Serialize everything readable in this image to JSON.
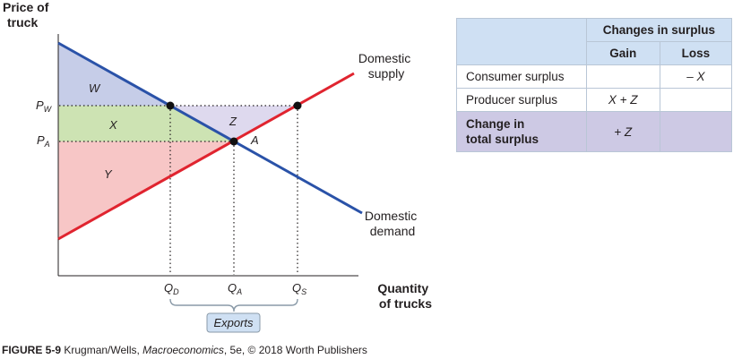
{
  "axes": {
    "y_label": [
      "Price of",
      "truck"
    ],
    "x_label": [
      "Quantity",
      "of trucks"
    ]
  },
  "curves": {
    "supply_label": [
      "Domestic",
      "supply"
    ],
    "demand_label": [
      "Domestic",
      "demand"
    ]
  },
  "price_ticks": {
    "pw_main": "P",
    "pw_sub": "W",
    "pa_main": "P",
    "pa_sub": "A"
  },
  "quantity_ticks": {
    "qd_main": "Q",
    "qd_sub": "D",
    "qa_main": "Q",
    "qa_sub": "A",
    "qs_main": "Q",
    "qs_sub": "S"
  },
  "areas": {
    "w": "W",
    "x": "X",
    "y": "Y",
    "z": "Z"
  },
  "point_a": "A",
  "exports_label": "Exports",
  "colors": {
    "supply": "#e0242f",
    "demand": "#2a52a8",
    "area_w": "#c6cde8",
    "area_x": "#cde3b3",
    "area_y": "#f7c6c6",
    "area_z": "#ded9ee",
    "table_header": "#cfe0f3",
    "table_total": "#cdc9e4"
  },
  "table": {
    "title": "Changes in surplus",
    "col_gain": "Gain",
    "col_loss": "Loss",
    "rows": [
      {
        "label": "Consumer surplus",
        "gain": "",
        "loss": "– X"
      },
      {
        "label": "Producer surplus",
        "gain": "X + Z",
        "loss": ""
      }
    ],
    "total_label": [
      "Change in",
      "total surplus"
    ],
    "total_gain": "+ Z",
    "total_loss": ""
  },
  "caption": {
    "figure": "FIGURE 5-9",
    "authors": " Krugman/Wells, ",
    "book": "Macroeconomics",
    "rest": ", 5e, © 2018 Worth Publishers"
  }
}
